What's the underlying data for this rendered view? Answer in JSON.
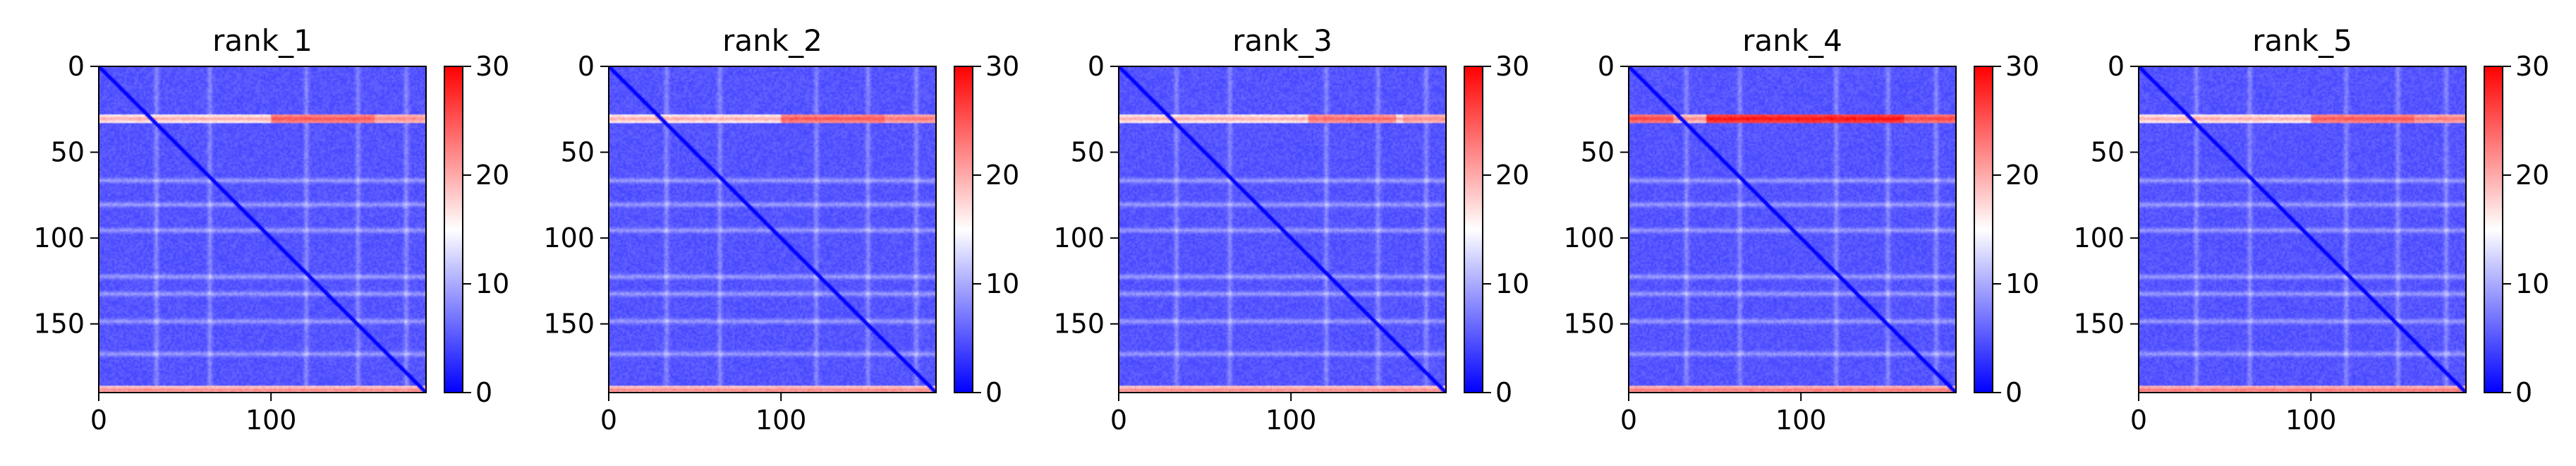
{
  "figure": {
    "panels": [
      "rank_1",
      "rank_2",
      "rank_3",
      "rank_4",
      "rank_5"
    ]
  },
  "chart_data": [
    {
      "type": "heatmap",
      "title": "rank_1",
      "xlabel": "",
      "ylabel": "",
      "x_ticks": [
        0,
        100
      ],
      "y_ticks": [
        0,
        50,
        100,
        150
      ],
      "xlim": [
        0,
        190
      ],
      "ylim": [
        190,
        0
      ],
      "colorbar": {
        "min": 0,
        "max": 30,
        "ticks": [
          0,
          10,
          20,
          30
        ],
        "colormap": "bwr"
      },
      "base_value": 5,
      "features": {
        "bright_rows": [
          {
            "y": 30,
            "value": 20
          },
          {
            "y": 188,
            "value": 22
          }
        ],
        "hot_spots": [
          {
            "y": 30,
            "x_from": 100,
            "x_to": 160,
            "value": 25
          },
          {
            "y": 30,
            "x_from": 160,
            "x_to": 190,
            "value": 22
          }
        ],
        "light_rows": [
          66,
          80,
          95,
          122,
          132,
          148,
          167
        ],
        "light_cols": [
          33,
          64,
          120,
          150,
          178
        ],
        "diagonal": {
          "value": 0
        }
      }
    },
    {
      "type": "heatmap",
      "title": "rank_2",
      "xlabel": "",
      "ylabel": "",
      "x_ticks": [
        0,
        100
      ],
      "y_ticks": [
        0,
        50,
        100,
        150
      ],
      "xlim": [
        0,
        190
      ],
      "ylim": [
        190,
        0
      ],
      "colorbar": {
        "min": 0,
        "max": 30,
        "ticks": [
          0,
          10,
          20,
          30
        ],
        "colormap": "bwr"
      },
      "base_value": 5,
      "features": {
        "bright_rows": [
          {
            "y": 30,
            "value": 20
          },
          {
            "y": 188,
            "value": 22
          }
        ],
        "hot_spots": [
          {
            "y": 30,
            "x_from": 100,
            "x_to": 160,
            "value": 25
          },
          {
            "y": 30,
            "x_from": 160,
            "x_to": 190,
            "value": 23
          }
        ],
        "light_rows": [
          66,
          80,
          95,
          122,
          132,
          148,
          167
        ],
        "light_cols": [
          33,
          64,
          120,
          150,
          178
        ],
        "diagonal": {
          "value": 0
        }
      }
    },
    {
      "type": "heatmap",
      "title": "rank_3",
      "xlabel": "",
      "ylabel": "",
      "x_ticks": [
        0,
        100
      ],
      "y_ticks": [
        0,
        50,
        100,
        150
      ],
      "xlim": [
        0,
        190
      ],
      "ylim": [
        190,
        0
      ],
      "colorbar": {
        "min": 0,
        "max": 30,
        "ticks": [
          0,
          10,
          20,
          30
        ],
        "colormap": "bwr"
      },
      "base_value": 5,
      "features": {
        "bright_rows": [
          {
            "y": 30,
            "value": 20
          },
          {
            "y": 188,
            "value": 22
          }
        ],
        "hot_spots": [
          {
            "y": 30,
            "x_from": 110,
            "x_to": 160,
            "value": 24
          },
          {
            "y": 30,
            "x_from": 165,
            "x_to": 190,
            "value": 22
          }
        ],
        "light_rows": [
          66,
          80,
          95,
          122,
          132,
          148,
          167
        ],
        "light_cols": [
          33,
          64,
          120,
          150,
          178
        ],
        "diagonal": {
          "value": 0
        }
      }
    },
    {
      "type": "heatmap",
      "title": "rank_4",
      "xlabel": "",
      "ylabel": "",
      "x_ticks": [
        0,
        100
      ],
      "y_ticks": [
        0,
        50,
        100,
        150
      ],
      "xlim": [
        0,
        190
      ],
      "ylim": [
        190,
        0
      ],
      "colorbar": {
        "min": 0,
        "max": 30,
        "ticks": [
          0,
          10,
          20,
          30
        ],
        "colormap": "bwr"
      },
      "base_value": 5,
      "features": {
        "bright_rows": [
          {
            "y": 30,
            "value": 22
          },
          {
            "y": 188,
            "value": 23
          }
        ],
        "hot_spots": [
          {
            "y": 30,
            "x_from": 0,
            "x_to": 25,
            "value": 26
          },
          {
            "y": 30,
            "x_from": 45,
            "x_to": 160,
            "value": 29
          },
          {
            "y": 30,
            "x_from": 160,
            "x_to": 190,
            "value": 26
          }
        ],
        "light_rows": [
          66,
          80,
          95,
          122,
          132,
          148,
          167
        ],
        "light_cols": [
          33,
          64,
          120,
          150,
          178
        ],
        "diagonal": {
          "value": 0
        }
      }
    },
    {
      "type": "heatmap",
      "title": "rank_5",
      "xlabel": "",
      "ylabel": "",
      "x_ticks": [
        0,
        100
      ],
      "y_ticks": [
        0,
        50,
        100,
        150
      ],
      "xlim": [
        0,
        190
      ],
      "ylim": [
        190,
        0
      ],
      "colorbar": {
        "min": 0,
        "max": 30,
        "ticks": [
          0,
          10,
          20,
          30
        ],
        "colormap": "bwr"
      },
      "base_value": 5,
      "features": {
        "bright_rows": [
          {
            "y": 30,
            "value": 20
          },
          {
            "y": 188,
            "value": 23
          }
        ],
        "hot_spots": [
          {
            "y": 30,
            "x_from": 100,
            "x_to": 160,
            "value": 25
          },
          {
            "y": 30,
            "x_from": 160,
            "x_to": 190,
            "value": 23
          }
        ],
        "light_rows": [
          66,
          80,
          95,
          122,
          132,
          148,
          167
        ],
        "light_cols": [
          33,
          64,
          120,
          150,
          178
        ],
        "diagonal": {
          "value": 0
        }
      }
    }
  ]
}
